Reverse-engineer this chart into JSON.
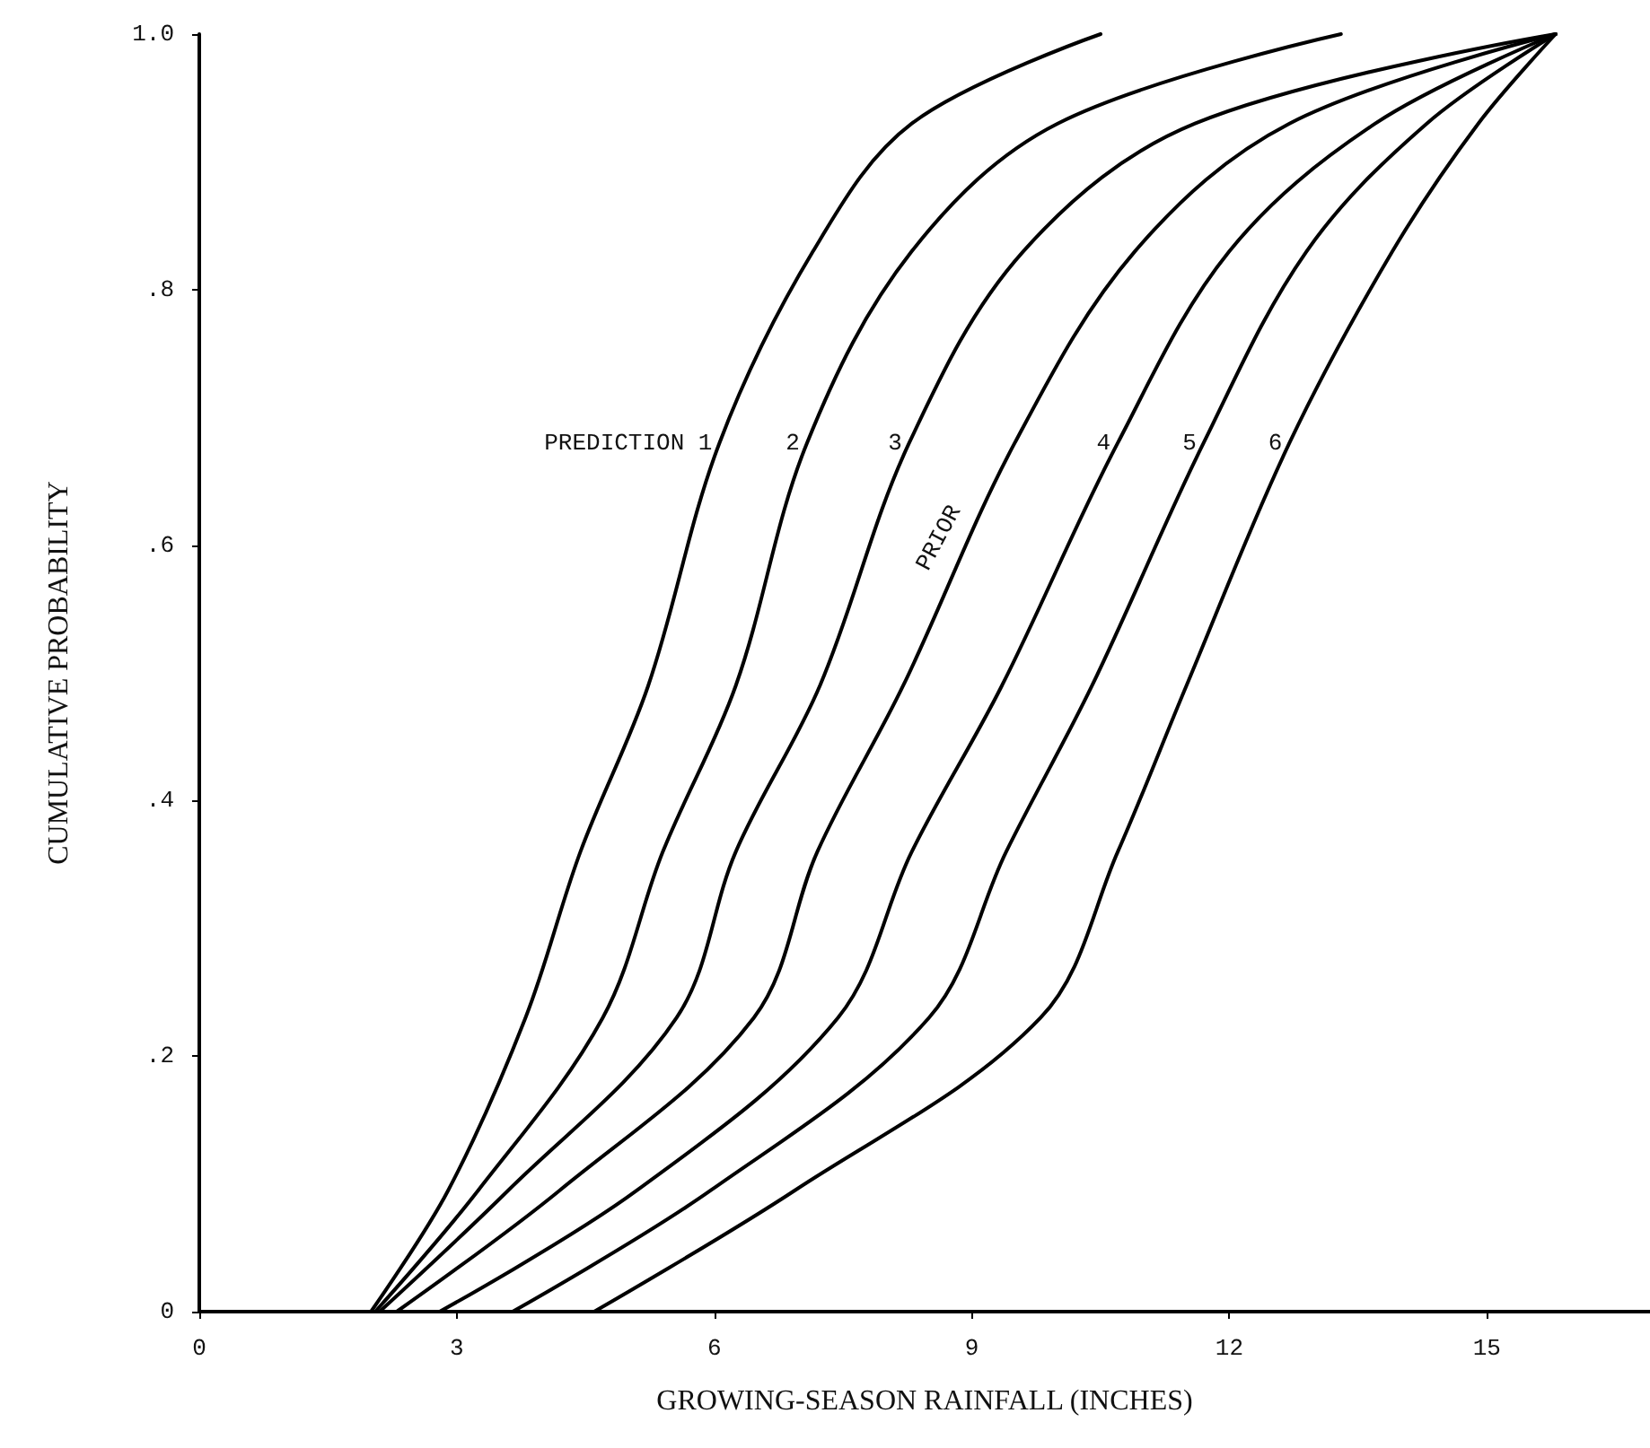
{
  "chart_data": {
    "type": "line",
    "xlabel": "GROWING-SEASON RAINFALL (INCHES)",
    "ylabel": "CUMULATIVE PROBABILITY",
    "xlim": [
      0,
      16.9
    ],
    "xticks": [
      0,
      3,
      6,
      9,
      12,
      15
    ],
    "ylim": [
      0,
      1.0
    ],
    "yticks": [
      {
        "value": 0,
        "label": "0"
      },
      {
        "value": 0.2,
        "label": ".2"
      },
      {
        "value": 0.4,
        "label": ".4"
      },
      {
        "value": 0.6,
        "label": ".6"
      },
      {
        "value": 0.8,
        "label": ".8"
      },
      {
        "value": 1.0,
        "label": "1.0"
      }
    ],
    "grid": false,
    "marker": "none",
    "line_style": "solid",
    "series": [
      {
        "color": "#000000",
        "x": [
          2.0,
          2.9,
          3.8,
          4.44,
          5.23,
          6.06,
          7.15,
          8.3,
          10.5
        ],
        "values": [
          0,
          0.095,
          0.23,
          0.36,
          0.49,
          0.68,
          0.83,
          0.93,
          1.0
        ]
      },
      {
        "color": "#000000",
        "x": [
          2.05,
          3.25,
          4.7,
          5.4,
          6.25,
          7.08,
          8.3,
          10.0,
          13.3
        ],
        "values": [
          0,
          0.095,
          0.23,
          0.36,
          0.49,
          0.68,
          0.83,
          0.93,
          1.0
        ]
      },
      {
        "color": "#000000",
        "x": [
          2.1,
          3.6,
          5.56,
          6.25,
          7.23,
          8.27,
          9.6,
          11.6,
          15.8
        ],
        "values": [
          0,
          0.095,
          0.23,
          0.36,
          0.49,
          0.68,
          0.83,
          0.93,
          1.0
        ]
      },
      {
        "color": "#000000",
        "x": [
          2.3,
          4.2,
          6.46,
          7.2,
          8.2,
          9.5,
          10.9,
          12.7,
          15.8
        ],
        "values": [
          0,
          0.095,
          0.23,
          0.36,
          0.49,
          0.68,
          0.83,
          0.93,
          1.0
        ]
      },
      {
        "color": "#000000",
        "x": [
          2.8,
          5.1,
          7.44,
          8.3,
          9.35,
          10.7,
          12.0,
          13.7,
          15.8
        ],
        "values": [
          0,
          0.095,
          0.23,
          0.36,
          0.49,
          0.68,
          0.83,
          0.93,
          1.0
        ]
      },
      {
        "color": "#000000",
        "x": [
          3.65,
          5.96,
          8.5,
          9.4,
          10.4,
          11.7,
          12.9,
          14.3,
          15.8
        ],
        "values": [
          0,
          0.095,
          0.23,
          0.36,
          0.49,
          0.68,
          0.83,
          0.93,
          1.0
        ]
      },
      {
        "color": "#000000",
        "x": [
          4.6,
          6.94,
          9.8,
          10.7,
          11.5,
          12.7,
          13.9,
          14.9,
          15.8
        ],
        "values": [
          0,
          0.095,
          0.23,
          0.36,
          0.49,
          0.68,
          0.83,
          0.93,
          1.0
        ]
      }
    ],
    "annotations": [
      {
        "text": "PREDICTION 1",
        "x": 6.06,
        "y": 0.68
      },
      {
        "text": "2",
        "x": 7.08,
        "y": 0.68
      },
      {
        "text": "3",
        "x": 8.27,
        "y": 0.68
      },
      {
        "text": "4",
        "x": 10.7,
        "y": 0.68
      },
      {
        "text": "5",
        "x": 11.7,
        "y": 0.68
      },
      {
        "text": "6",
        "x": 12.7,
        "y": 0.68
      },
      {
        "text": "PRIOR",
        "x": 8.95,
        "y": 0.6
      }
    ]
  }
}
